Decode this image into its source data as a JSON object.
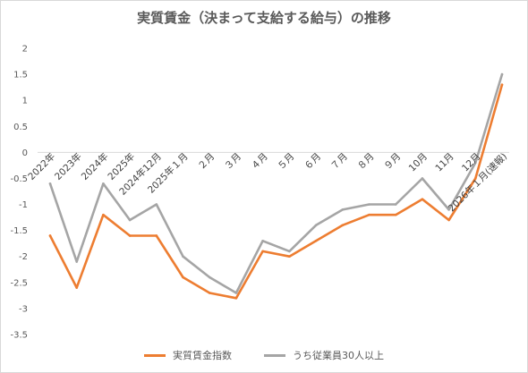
{
  "chart_data": {
    "type": "line",
    "title": "実質賃金（決まって支給する給与）の推移",
    "categories": [
      "2022年",
      "2023年",
      "2024年",
      "2025年",
      "2024年12月",
      "2025年１月",
      "２月",
      "３月",
      "４月",
      "５月",
      "６月",
      "７月",
      "８月",
      "９月",
      "10月",
      "11月",
      "12月",
      "2026年１月(速報)"
    ],
    "series": [
      {
        "name": "実質賃金指数",
        "color": "#ed7d31",
        "values": [
          -1.6,
          -2.6,
          -1.2,
          -1.6,
          -1.6,
          -2.4,
          -2.7,
          -2.8,
          -1.9,
          -2.0,
          -1.7,
          -1.4,
          -1.2,
          -1.2,
          -0.9,
          -1.3,
          -0.5,
          1.3
        ]
      },
      {
        "name": "うち従業員30人以上",
        "color": "#a5a5a5",
        "values": [
          -0.6,
          -2.1,
          -0.6,
          -1.3,
          -1.0,
          -2.0,
          -2.4,
          -2.7,
          -1.7,
          -1.9,
          -1.4,
          -1.1,
          -1.0,
          -1.0,
          -0.5,
          -1.1,
          -0.2,
          1.5
        ]
      }
    ],
    "ylim": [
      -3.5,
      2
    ],
    "yticks": [
      "2",
      "1.5",
      "1",
      "0.5",
      "0",
      "-0.5",
      "-1",
      "-1.5",
      "-2",
      "-2.5",
      "-3",
      "-3.5"
    ],
    "grid": false,
    "legend_position": "bottom",
    "xlabel": "",
    "ylabel": ""
  }
}
